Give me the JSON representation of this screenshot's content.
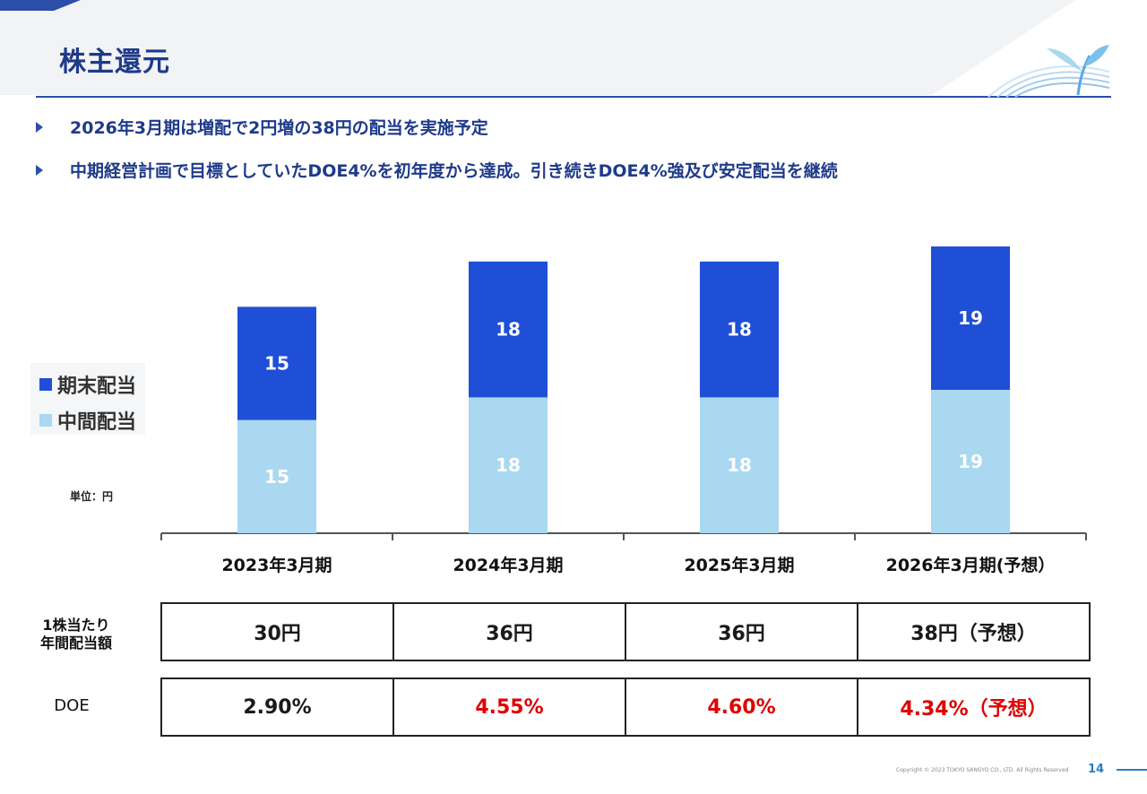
{
  "page": {
    "title": "株主還元",
    "bullets": [
      "2026年3月期は増配で2円増の38円の配当を実施予定",
      "中期経営計画で目標としていたDOE4%を初年度から達成。引き続きDOE4%強及び安定配当を継続"
    ],
    "unit": "単位：円",
    "footer": {
      "copyright": "Copyright © 2023 TOKYO SANGYO CO., LTD. All Rights Reserved",
      "page_number": "14"
    }
  },
  "colors": {
    "title": "#1e3a8a",
    "dark_series": "#1f4fd6",
    "light_series": "#a9d8f0",
    "highlight_red": "#e00000"
  },
  "chart_data": {
    "type": "bar",
    "stacked": true,
    "categories": [
      "2023年3月期",
      "2024年3月期",
      "2025年3月期",
      "2026年3月期(予想）"
    ],
    "series": [
      {
        "name": "中間配当",
        "color": "#a9d8f0",
        "values": [
          15,
          18,
          18,
          19
        ]
      },
      {
        "name": "期末配当",
        "color": "#1f4fd6",
        "values": [
          15,
          18,
          18,
          19
        ]
      }
    ],
    "legend_order": [
      "期末配当",
      "中間配当"
    ],
    "legend_position": "left",
    "ylim": [
      0,
      40
    ],
    "grid": false
  },
  "table": {
    "rows": [
      {
        "label_lines": [
          "1株当たり",
          "年間配当額"
        ],
        "cells": [
          {
            "text": "30円",
            "red": false
          },
          {
            "text": "36円",
            "red": false
          },
          {
            "text": "36円",
            "red": false
          },
          {
            "text": "38円（予想）",
            "red": false
          }
        ]
      },
      {
        "label_lines": [
          "DOE"
        ],
        "cells": [
          {
            "text": "2.90%",
            "red": false
          },
          {
            "text": "4.55%",
            "red": true
          },
          {
            "text": "4.60%",
            "red": true
          },
          {
            "text": "4.34%（予想）",
            "red": true
          }
        ]
      }
    ]
  }
}
